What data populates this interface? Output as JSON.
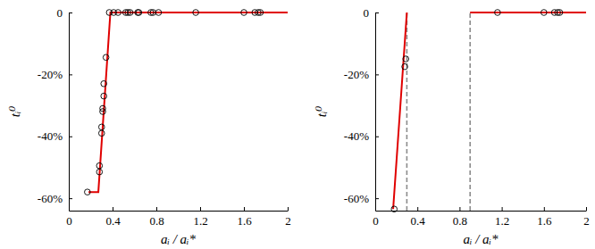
{
  "chart_data": [
    {
      "type": "line",
      "xlabel": "aᵢ / aᵢ*",
      "ylabel": "tᵢ⁰",
      "xlim": [
        0,
        2
      ],
      "xticks": [
        0,
        0.4,
        0.8,
        1.2,
        1.6,
        2
      ],
      "ylim": [
        -64,
        0
      ],
      "yticks": [
        {
          "value": -60,
          "label": "-60%"
        },
        {
          "value": -40,
          "label": "-40%"
        },
        {
          "value": -20,
          "label": "-20%"
        },
        0
      ],
      "series": [
        {
          "type": "scatter",
          "marker": "circle",
          "color": "#000000",
          "x": [
            0.17,
            0.28,
            0.28,
            0.3,
            0.3,
            0.31,
            0.31,
            0.32,
            0.32,
            0.34,
            0.37,
            0.41,
            0.45,
            0.52,
            0.54,
            0.56,
            0.63,
            0.64,
            0.75,
            0.77,
            0.82,
            1.16,
            1.6,
            1.7,
            1.73,
            1.75
          ],
          "values": [
            -58,
            -51.5,
            -49.5,
            -39,
            -37,
            -32,
            -31,
            -27,
            -23,
            -14.5,
            0,
            0,
            0,
            0,
            0,
            0,
            0,
            0,
            0,
            0,
            0,
            0,
            0,
            0,
            0,
            0
          ]
        },
        {
          "type": "line",
          "color": "#e00000",
          "line_style": "solid",
          "x": [
            0.18,
            0.27,
            0.38,
            2
          ],
          "values": [
            -58,
            -58,
            0,
            0
          ]
        }
      ]
    },
    {
      "type": "line",
      "xlabel": "aᵢ / aᵢ*",
      "ylabel": "tᵢ⁰",
      "xlim": [
        0,
        2
      ],
      "xticks": [
        0,
        0.4,
        0.8,
        1.2,
        1.6,
        2
      ],
      "ylim": [
        -64,
        0
      ],
      "yticks": [
        {
          "value": -60,
          "label": "-60%"
        },
        {
          "value": -40,
          "label": "-40%"
        },
        {
          "value": -20,
          "label": "-20%"
        },
        0
      ],
      "reference_lines": [
        0.3,
        0.9
      ],
      "series": [
        {
          "type": "scatter",
          "marker": "circle",
          "color": "#000000",
          "x": [
            0.18,
            0.28,
            0.29,
            1.16,
            1.6,
            1.7,
            1.73,
            1.75
          ],
          "values": [
            -63.5,
            -17.5,
            -15,
            0,
            0,
            0,
            0,
            0
          ]
        },
        {
          "type": "line",
          "color": "#e00000",
          "line_style": "solid",
          "x": [
            0.17,
            0.3,
            0.6,
            0.9,
            2
          ],
          "values": [
            -63.5,
            0,
            null,
            0,
            0
          ]
        }
      ]
    }
  ]
}
